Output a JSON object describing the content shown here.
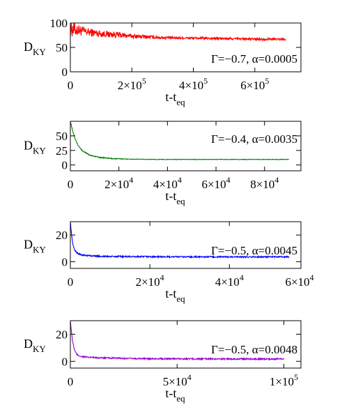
{
  "chart_data": [
    {
      "type": "line",
      "color": "#ff0000",
      "ylabel": "D",
      "ylabel_sub": "KY",
      "xlabel": "t-t",
      "xlabel_sub": "eq",
      "annotation": "Γ=−0.7, α=0.0005",
      "xlim": [
        0,
        750000
      ],
      "ylim": [
        0,
        100
      ],
      "yticks": [
        0,
        50,
        100
      ],
      "xticks": [
        0,
        200000,
        400000,
        600000
      ],
      "xtick_labels": [
        {
          "mant": "0",
          "exp": ""
        },
        {
          "mant": "2×10",
          "exp": "5"
        },
        {
          "mant": "4×10",
          "exp": "5"
        },
        {
          "mant": "6×10",
          "exp": "5"
        }
      ],
      "series": [
        {
          "x": [
            0,
            20000,
            50000,
            100000,
            150000,
            200000,
            300000,
            400000,
            500000,
            600000,
            700000
          ],
          "y": [
            88,
            86,
            82,
            78,
            76,
            73,
            70,
            69,
            68,
            67,
            67
          ],
          "noise": [
            0.35,
            0.25,
            0.18,
            0.14,
            0.12,
            0.09,
            0.06,
            0.05,
            0.05,
            0.05,
            0.05
          ]
        }
      ]
    },
    {
      "type": "line",
      "color": "#008000",
      "ylabel": "D",
      "ylabel_sub": "KY",
      "xlabel": "t-t",
      "xlabel_sub": "eq",
      "annotation": "Γ=−0.4, α=0.0035",
      "xlim": [
        0,
        95000
      ],
      "ylim": [
        -10,
        75
      ],
      "yticks": [
        0,
        25,
        50
      ],
      "xticks": [
        0,
        20000,
        40000,
        60000,
        80000
      ],
      "xtick_labels": [
        {
          "mant": "0",
          "exp": ""
        },
        {
          "mant": "2×10",
          "exp": "4"
        },
        {
          "mant": "4×10",
          "exp": "4"
        },
        {
          "mant": "6×10",
          "exp": "4"
        },
        {
          "mant": "8×10",
          "exp": "4"
        }
      ],
      "series": [
        {
          "x": [
            0,
            1000,
            2000,
            3000,
            5000,
            8000,
            12000,
            17000,
            25000,
            35000,
            50000,
            70000,
            90000
          ],
          "y": [
            75,
            58,
            45,
            35,
            24,
            17,
            13,
            11,
            10,
            9.5,
            9.5,
            9.5,
            9.5
          ],
          "noise": [
            0.02,
            0.02,
            0.02,
            0.02,
            0.02,
            0.02,
            0.02,
            0.02,
            0.01,
            0.01,
            0.01,
            0.01,
            0.01
          ]
        }
      ]
    },
    {
      "type": "line",
      "color": "#0000ff",
      "ylabel": "D",
      "ylabel_sub": "KY",
      "xlabel": "t-t",
      "xlabel_sub": "eq",
      "annotation": "Γ=−0.5, α=0.0045",
      "xlim": [
        0,
        58000
      ],
      "ylim": [
        -5,
        30
      ],
      "yticks": [
        0,
        20
      ],
      "xticks": [
        0,
        20000,
        40000
      ],
      "xtick_labels": [
        {
          "mant": "0",
          "exp": ""
        },
        {
          "mant": "2×10",
          "exp": "4"
        },
        {
          "mant": "4×10",
          "exp": "4"
        }
      ],
      "extra_tick_label": {
        "mant": "6×10",
        "exp": "4"
      },
      "series": [
        {
          "x": [
            0,
            300,
            700,
            1200,
            2000,
            3000,
            5000,
            8000,
            15000,
            25000,
            40000,
            55000
          ],
          "y": [
            30,
            20,
            12,
            8,
            6,
            5,
            4.5,
            4,
            3.8,
            3.7,
            3.6,
            3.6
          ],
          "noise": [
            0.03,
            0.03,
            0.03,
            0.03,
            0.03,
            0.03,
            0.03,
            0.03,
            0.03,
            0.03,
            0.03,
            0.03
          ]
        }
      ]
    },
    {
      "type": "line",
      "color": "#9400d3",
      "ylabel": "D",
      "ylabel_sub": "KY",
      "xlabel": "t-t",
      "xlabel_sub": "eq",
      "annotation": "Γ=−0.5, α=0.0048",
      "xlim": [
        0,
        108000
      ],
      "ylim": [
        -5,
        30
      ],
      "yticks": [
        0,
        20
      ],
      "xticks": [
        0,
        50000,
        100000
      ],
      "xtick_labels": [
        {
          "mant": "0",
          "exp": ""
        },
        {
          "mant": "5×10",
          "exp": "4"
        },
        {
          "mant": "1×10",
          "exp": "5"
        }
      ],
      "series": [
        {
          "x": [
            0,
            500,
            1000,
            2000,
            3000,
            5000,
            8000,
            15000,
            30000,
            60000,
            100000
          ],
          "y": [
            30,
            22,
            15,
            8,
            5,
            3.5,
            3,
            2.5,
            2,
            1.8,
            1.7
          ],
          "noise": [
            0.03,
            0.03,
            0.03,
            0.03,
            0.03,
            0.03,
            0.03,
            0.03,
            0.03,
            0.03,
            0.03
          ]
        }
      ]
    }
  ]
}
